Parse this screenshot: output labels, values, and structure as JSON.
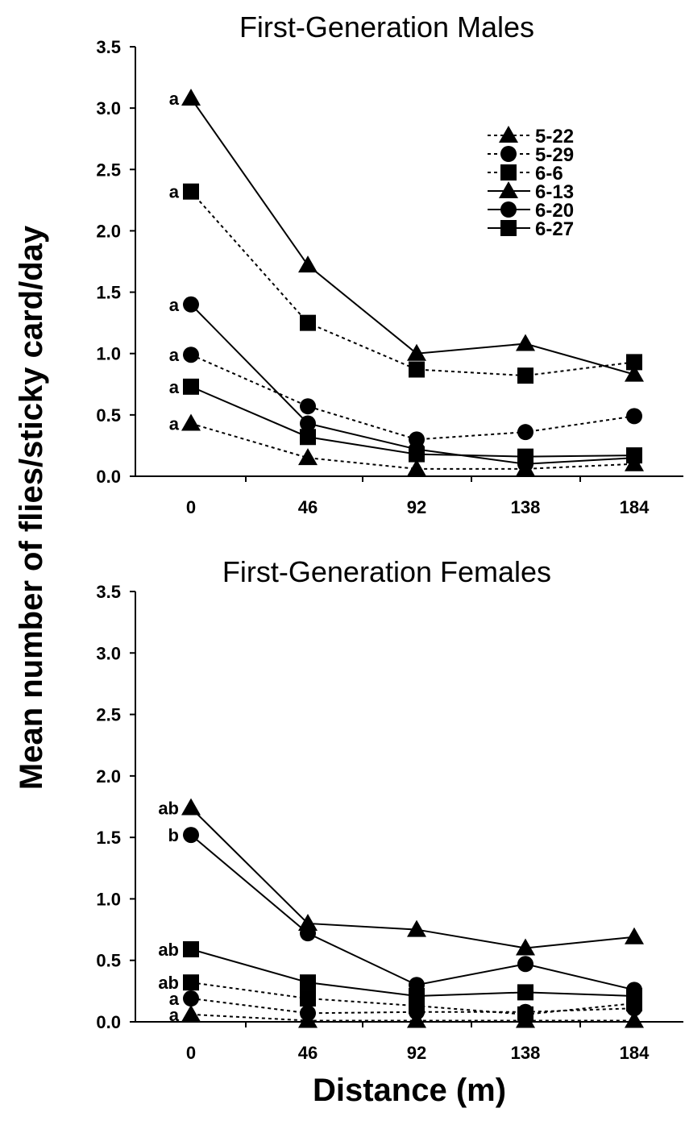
{
  "chart_data": [
    {
      "type": "line",
      "title": "First-Generation Males",
      "x": [
        0,
        46,
        92,
        138,
        184
      ],
      "ylim": [
        0,
        3.5
      ],
      "yticks": [
        "0.0",
        "0.5",
        "1.0",
        "1.5",
        "2.0",
        "2.5",
        "3.0",
        "3.5"
      ],
      "xticks": [
        "0",
        "46",
        "92",
        "138",
        "184"
      ],
      "grid": false,
      "legend_position": "top-right",
      "series": [
        {
          "name": "5-22",
          "marker": "triangle",
          "line_style": "dotted",
          "values": [
            0.43,
            0.15,
            0.06,
            0.06,
            0.1
          ],
          "letter": "a"
        },
        {
          "name": "5-29",
          "marker": "circle",
          "line_style": "dotted",
          "values": [
            0.99,
            0.57,
            0.3,
            0.36,
            0.49
          ],
          "letter": "a"
        },
        {
          "name": "6-6",
          "marker": "square",
          "line_style": "dotted",
          "values": [
            2.32,
            1.25,
            0.87,
            0.82,
            0.93
          ],
          "letter": "a"
        },
        {
          "name": "6-13",
          "marker": "triangle",
          "line_style": "solid",
          "values": [
            3.08,
            1.72,
            1.0,
            1.08,
            0.83
          ],
          "letter": "a"
        },
        {
          "name": "6-20",
          "marker": "circle",
          "line_style": "solid",
          "values": [
            1.4,
            0.43,
            0.22,
            0.1,
            0.15
          ],
          "letter": "a"
        },
        {
          "name": "6-27",
          "marker": "square",
          "line_style": "solid",
          "values": [
            0.73,
            0.32,
            0.18,
            0.16,
            0.17
          ],
          "letter": "a"
        }
      ]
    },
    {
      "type": "line",
      "title": "First-Generation Females",
      "x": [
        0,
        46,
        92,
        138,
        184
      ],
      "ylim": [
        0,
        3.5
      ],
      "yticks": [
        "0.0",
        "0.5",
        "1.0",
        "1.5",
        "2.0",
        "2.5",
        "3.0",
        "3.5"
      ],
      "xticks": [
        "0",
        "46",
        "92",
        "138",
        "184"
      ],
      "grid": false,
      "series": [
        {
          "name": "5-22",
          "marker": "triangle",
          "line_style": "dotted",
          "values": [
            0.06,
            0.01,
            0.01,
            0.01,
            0.01
          ],
          "letter": "a"
        },
        {
          "name": "5-29",
          "marker": "circle",
          "line_style": "dotted",
          "values": [
            0.19,
            0.07,
            0.08,
            0.08,
            0.11
          ],
          "letter": "a"
        },
        {
          "name": "6-6",
          "marker": "square",
          "line_style": "dotted",
          "values": [
            0.32,
            0.19,
            0.13,
            0.06,
            0.15
          ],
          "letter": "ab"
        },
        {
          "name": "6-13",
          "marker": "triangle",
          "line_style": "solid",
          "values": [
            1.74,
            0.8,
            0.75,
            0.6,
            0.69
          ],
          "letter": "ab"
        },
        {
          "name": "6-20",
          "marker": "circle",
          "line_style": "solid",
          "values": [
            1.52,
            0.72,
            0.3,
            0.47,
            0.26
          ],
          "letter": "b"
        },
        {
          "name": "6-27",
          "marker": "square",
          "line_style": "solid",
          "values": [
            0.59,
            0.32,
            0.21,
            0.24,
            0.21
          ],
          "letter": "ab"
        }
      ]
    }
  ],
  "ylabel": "Mean number of flies/sticky card/day",
  "xlabel": "Distance (m)"
}
